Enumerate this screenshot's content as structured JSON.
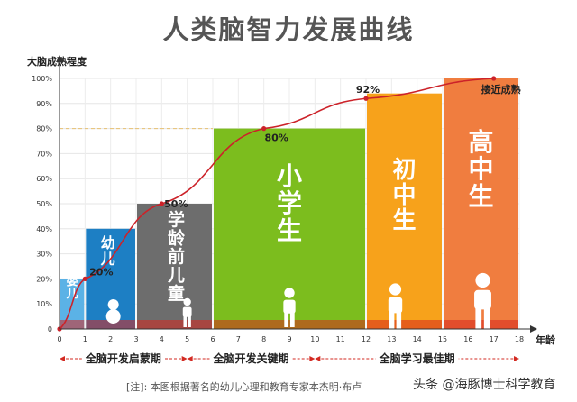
{
  "title": "人类脑智力发展曲线",
  "y_axis_title": "大脑成熟程度",
  "x_axis_title": "年龄",
  "footnote": "[注]: 本图根据著名的幼儿心理和教育专家本杰明·布卢",
  "watermark": "头条 @海豚博士科学教育",
  "chart_data": {
    "type": "bar",
    "title": "人类脑智力发展曲线",
    "ylabel": "大脑成熟程度",
    "xlabel": "年龄",
    "ylim": [
      0,
      100
    ],
    "xlim": [
      0,
      18
    ],
    "y_ticks": [
      "0",
      "10%",
      "20%",
      "30%",
      "40%",
      "50%",
      "60%",
      "70%",
      "80%",
      "90%",
      "100%"
    ],
    "x_ticks": [
      "0",
      "1",
      "2",
      "3",
      "4",
      "5",
      "6",
      "7",
      "8",
      "9",
      "10",
      "11",
      "12",
      "13",
      "14",
      "15",
      "16",
      "17",
      "18"
    ],
    "bars": [
      {
        "label": "婴儿",
        "x_start": 0,
        "x_end": 1,
        "value": 20,
        "color": "#5bb2e6",
        "figure": "infant"
      },
      {
        "label": "幼儿",
        "x_start": 1,
        "x_end": 3,
        "value": 40,
        "color": "#1d7fc4",
        "figure": "toddler"
      },
      {
        "label": "学龄前儿童",
        "x_start": 3,
        "x_end": 6,
        "value": 50,
        "color": "#6d6d6d",
        "figure": "child"
      },
      {
        "label": "小学生",
        "x_start": 6,
        "x_end": 12,
        "value": 80,
        "color": "#7cbd1e",
        "figure": "child"
      },
      {
        "label": "初中生",
        "x_start": 12,
        "x_end": 15,
        "value": 94,
        "color": "#f7a21b",
        "figure": "teen"
      },
      {
        "label": "高中生",
        "x_start": 15,
        "x_end": 18,
        "value": 100,
        "color": "#f07d3f",
        "figure": "teen"
      }
    ],
    "curve": {
      "name": "大脑成熟程度",
      "color": "#cc2229",
      "points": [
        {
          "x": 0,
          "y": 0
        },
        {
          "x": 1,
          "y": 20
        },
        {
          "x": 4,
          "y": 50
        },
        {
          "x": 8,
          "y": 80
        },
        {
          "x": 12,
          "y": 92
        },
        {
          "x": 17,
          "y": 100
        }
      ]
    },
    "point_labels": [
      {
        "x": 1,
        "y": 20,
        "text": "20%"
      },
      {
        "x": 4,
        "y": 50,
        "text": "50%"
      },
      {
        "x": 8,
        "y": 80,
        "text": "80%"
      },
      {
        "x": 12,
        "y": 92,
        "text": "92%"
      },
      {
        "x": 17,
        "y": 100,
        "text": "接近成熟"
      }
    ],
    "reference_line": {
      "y": 80,
      "style": "dashed",
      "color": "#e8c070"
    },
    "periods": [
      {
        "label": "全脑开发启蒙期",
        "x_start": 0,
        "x_end": 5
      },
      {
        "label": "全脑开发关键期",
        "x_start": 5,
        "x_end": 10
      },
      {
        "label": "全脑学习最佳期",
        "x_start": 10,
        "x_end": 18
      }
    ]
  }
}
